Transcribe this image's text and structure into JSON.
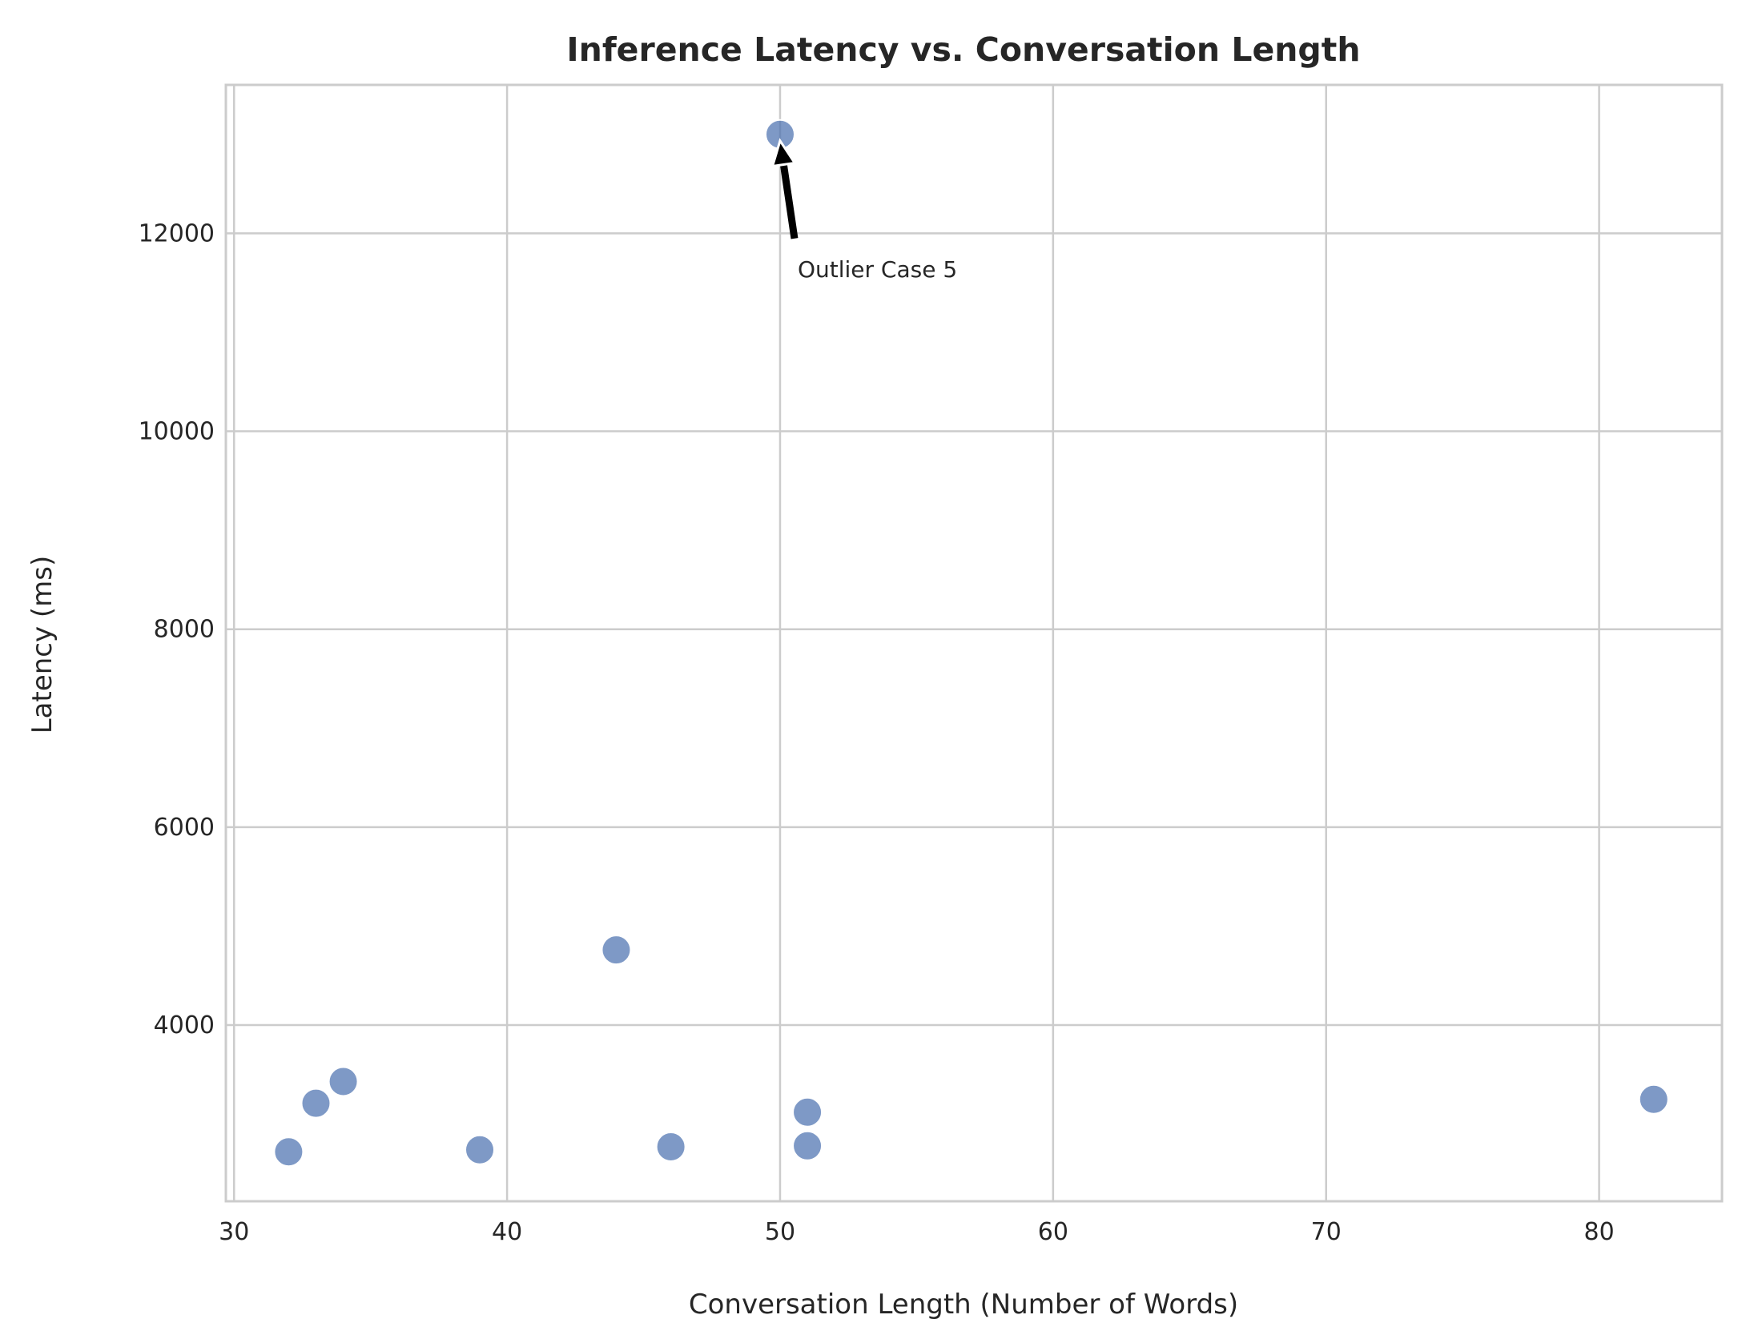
{
  "chart_data": {
    "type": "scatter",
    "title": "Inference Latency vs. Conversation Length",
    "xlabel": "Conversation Length (Number of Words)",
    "ylabel": "Latency (ms)",
    "xlim": [
      29.7,
      84.5
    ],
    "ylim": [
      2220,
      13500
    ],
    "xticks": [
      30,
      40,
      50,
      60,
      70,
      80
    ],
    "yticks": [
      4000,
      6000,
      8000,
      10000,
      12000
    ],
    "grid": true,
    "point_color": "#4c72b0",
    "points": [
      {
        "x": 32,
        "y": 2720
      },
      {
        "x": 33,
        "y": 3210
      },
      {
        "x": 34,
        "y": 3430
      },
      {
        "x": 39,
        "y": 2740
      },
      {
        "x": 44,
        "y": 4760
      },
      {
        "x": 46,
        "y": 2770
      },
      {
        "x": 50,
        "y": 13000
      },
      {
        "x": 51,
        "y": 3120
      },
      {
        "x": 51,
        "y": 2780
      },
      {
        "x": 82,
        "y": 3250
      }
    ],
    "annotations": [
      {
        "text": "Outlier Case 5",
        "x": 50,
        "y": 13000
      }
    ]
  }
}
